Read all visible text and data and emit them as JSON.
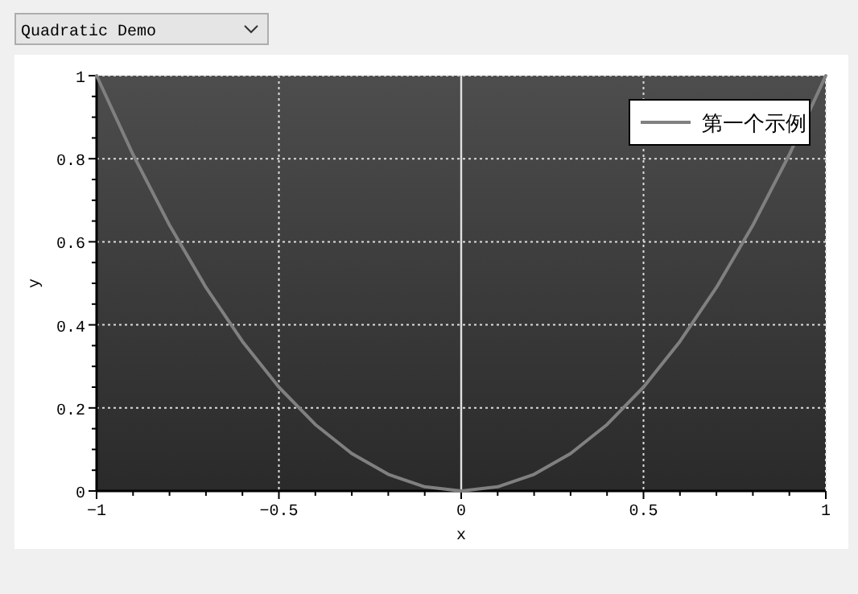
{
  "chart_data": {
    "type": "line",
    "xlabel": "x",
    "ylabel": "y",
    "x": [
      -1,
      -0.9,
      -0.8,
      -0.7,
      -0.6,
      -0.5,
      -0.4,
      -0.3,
      -0.2,
      -0.1,
      0,
      0.1,
      0.2,
      0.3,
      0.4,
      0.5,
      0.6,
      0.7,
      0.8,
      0.9,
      1
    ],
    "series": [
      {
        "name": "第一个示例",
        "color": "#808080",
        "values": [
          1,
          0.81,
          0.64,
          0.49,
          0.36,
          0.25,
          0.16,
          0.09,
          0.04,
          0.01,
          0,
          0.01,
          0.04,
          0.09,
          0.16,
          0.25,
          0.36,
          0.49,
          0.64,
          0.81,
          1
        ]
      }
    ],
    "xlim": [
      -1,
      1
    ],
    "ylim": [
      0,
      1
    ],
    "xticks": [
      {
        "value": -1,
        "label": "−1"
      },
      {
        "value": -0.5,
        "label": "−0.5"
      },
      0,
      0.5,
      1
    ],
    "yticks": [
      0,
      0.2,
      0.4,
      0.6,
      0.8,
      1
    ],
    "ref_lines": [
      {
        "axis": "x",
        "value": 0,
        "label": null,
        "color": "#e0e0e0"
      }
    ],
    "grid": true,
    "legend": "top right",
    "marker": "none",
    "line_style": "solid",
    "annotations": [
      "Quadratic Demo"
    ]
  }
}
